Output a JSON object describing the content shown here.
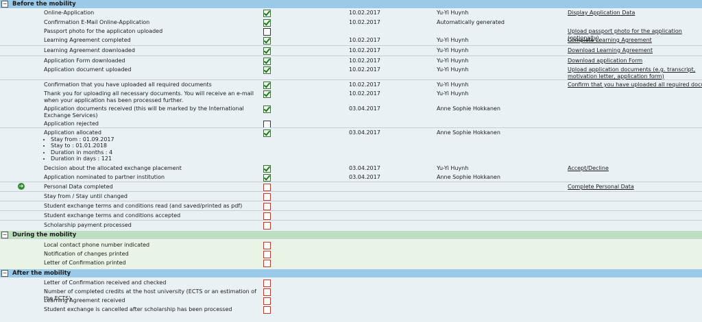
{
  "sections": {
    "before": {
      "title": "Before the mobility",
      "toggle": "−",
      "rows": [
        {
          "name": "Online-Application",
          "date": "10.02.2017",
          "person": "Yu-Yi Huynh",
          "action": "Display Application Data"
        },
        {
          "name": "Confirmation E-Mail Online-Application",
          "date": "10.02.2017",
          "person": "Automatically generated"
        },
        {
          "name": "Passport photo for the applicaton uploaded",
          "action": "Upload passport photo for the application (optionally)"
        },
        {
          "name": "Learning Agreement completed",
          "date": "10.02.2017",
          "person": "Yu-Yi Huynh",
          "action": "Complete Learning Agreement"
        },
        {
          "name": "Learning Agreement downloaded",
          "date": "10.02.2017",
          "person": "Yu-Yi Huynh",
          "action": "Download Learning Agreement"
        },
        {
          "name": "Application Form downloaded",
          "date": "10.02.2017",
          "person": "Yu-Yi Huynh",
          "action": "Download application Form"
        },
        {
          "name": "Application document uploaded",
          "date": "10.02.2017",
          "person": "Yu-Yi Huynh",
          "action": "Upload application documents (e.g. transcript, motivation letter, application form)"
        },
        {
          "name": "Confirmation that you have uploaded all required documents",
          "date": "10.02.2017",
          "person": "Yu-Yi Huynh",
          "action": "Confirm that you have uploaded all required documents"
        },
        {
          "name": "Thank you for uploading all necessary documents. You will receive an e-mail when your application has been processed further.",
          "date": "10.02.2017",
          "person": "Yu-Yi Huynh"
        },
        {
          "name": "Application documents received (this will be marked by the International Exchange Services)",
          "date": "03.04.2017",
          "person": "Anne Sophie Hokkanen"
        },
        {
          "name": "Application rejected"
        },
        {
          "name": "Application allocated",
          "date": "03.04.2017",
          "person": "Anne Sophie Hokkanen",
          "details": [
            "Stay from : 01.09.2017",
            "Stay to : 01.01.2018",
            "Duration in months : 4",
            "Duration in days : 121"
          ]
        },
        {
          "name": "Decision about the allocated exchange placement",
          "date": "03.04.2017",
          "person": "Yu-Yi Huynh",
          "action": "Accept/Decline"
        },
        {
          "name": "Application nominated to partner institution",
          "date": "03.04.2017",
          "person": "Anne Sophie Hokkanen"
        },
        {
          "name": "Personal Data completed",
          "action": "Complete Personal Data",
          "current_marker": "➜"
        },
        {
          "name": "Stay from / Stay until changed"
        },
        {
          "name": "Student exchange terms and conditions read (and saved/printed as pdf)"
        },
        {
          "name": "Student exchange terms and conditions accepted"
        },
        {
          "name": "Scholarship payment processed"
        }
      ]
    },
    "during": {
      "title": "During the mobility",
      "toggle": "−",
      "rows": [
        {
          "name": "Local contact phone number indicated"
        },
        {
          "name": "Notification of changes printed"
        },
        {
          "name": "Letter of Confirmation printed"
        }
      ]
    },
    "after": {
      "title": "After the mobility",
      "toggle": "−",
      "rows": [
        {
          "name": "Letter of Confirmation received and checked"
        },
        {
          "name": "Number of completed credits at the host university (ECTS or an estimation of the ECTS)"
        },
        {
          "name": "Learning Agreement received"
        },
        {
          "name": "Student exchange is cancelled after scholarship has been processed"
        }
      ]
    }
  },
  "colors": {
    "header_blue": "#9bc9ea",
    "header_green": "#bddfbf",
    "check_green": "#1f7a1f",
    "pending_red": "#c0392b"
  }
}
